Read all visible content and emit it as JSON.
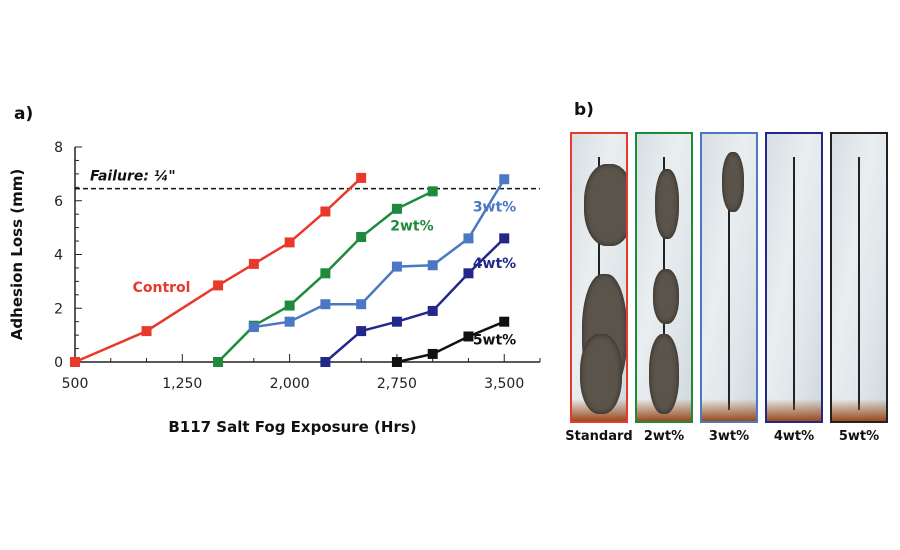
{
  "panel_a_label": "a)",
  "panel_b_label": "b)",
  "chart_data": {
    "type": "line",
    "xlabel": "B117 Salt Fog Exposure (Hrs)",
    "ylabel": "Adhesion Loss (mm)",
    "xlim": [
      500,
      3750
    ],
    "ylim": [
      0,
      8
    ],
    "xticks": [
      500,
      1250,
      2000,
      2750,
      3500
    ],
    "xtick_labels": [
      "500",
      "1,250",
      "2,000",
      "2,750",
      "3,500"
    ],
    "yticks": [
      0,
      2,
      4,
      6,
      8
    ],
    "ytick_labels": [
      "0",
      "2",
      "4",
      "6",
      "8"
    ],
    "failure_line": {
      "value": 6.45,
      "label": "Failure: ¼\""
    },
    "series": [
      {
        "name": "Control",
        "color": "#e8392a",
        "x": [
          500,
          1000,
          1500,
          1750,
          2000,
          2250,
          2500
        ],
        "y": [
          0,
          1.15,
          2.85,
          3.65,
          4.45,
          5.6,
          6.85
        ]
      },
      {
        "name": "2wt%",
        "color": "#1e8a3c",
        "x": [
          1500,
          1750,
          2000,
          2250,
          2500,
          2750,
          3000
        ],
        "y": [
          0,
          1.35,
          2.1,
          3.3,
          4.65,
          5.7,
          6.35
        ]
      },
      {
        "name": "3wt%",
        "color": "#4a78c4",
        "x": [
          1750,
          2000,
          2250,
          2500,
          2750,
          3000,
          3250,
          3500
        ],
        "y": [
          1.3,
          1.5,
          2.15,
          2.15,
          3.55,
          3.6,
          4.6,
          6.8
        ]
      },
      {
        "name": "4wt%",
        "color": "#23278a",
        "x": [
          2250,
          2500,
          2750,
          3000,
          3250,
          3500
        ],
        "y": [
          0,
          1.15,
          1.5,
          1.9,
          3.3,
          4.6
        ]
      },
      {
        "name": "5wt%",
        "color": "#111111",
        "x": [
          2750,
          3000,
          3250,
          3500
        ],
        "y": [
          0,
          0.3,
          0.95,
          1.5
        ]
      }
    ]
  },
  "samples": [
    {
      "label": "Standard",
      "color": "#e8392a"
    },
    {
      "label": "2wt%",
      "color": "#1e8a3c"
    },
    {
      "label": "3wt%",
      "color": "#4a78c4"
    },
    {
      "label": "4wt%",
      "color": "#23278a"
    },
    {
      "label": "5wt%",
      "color": "#222222"
    }
  ]
}
